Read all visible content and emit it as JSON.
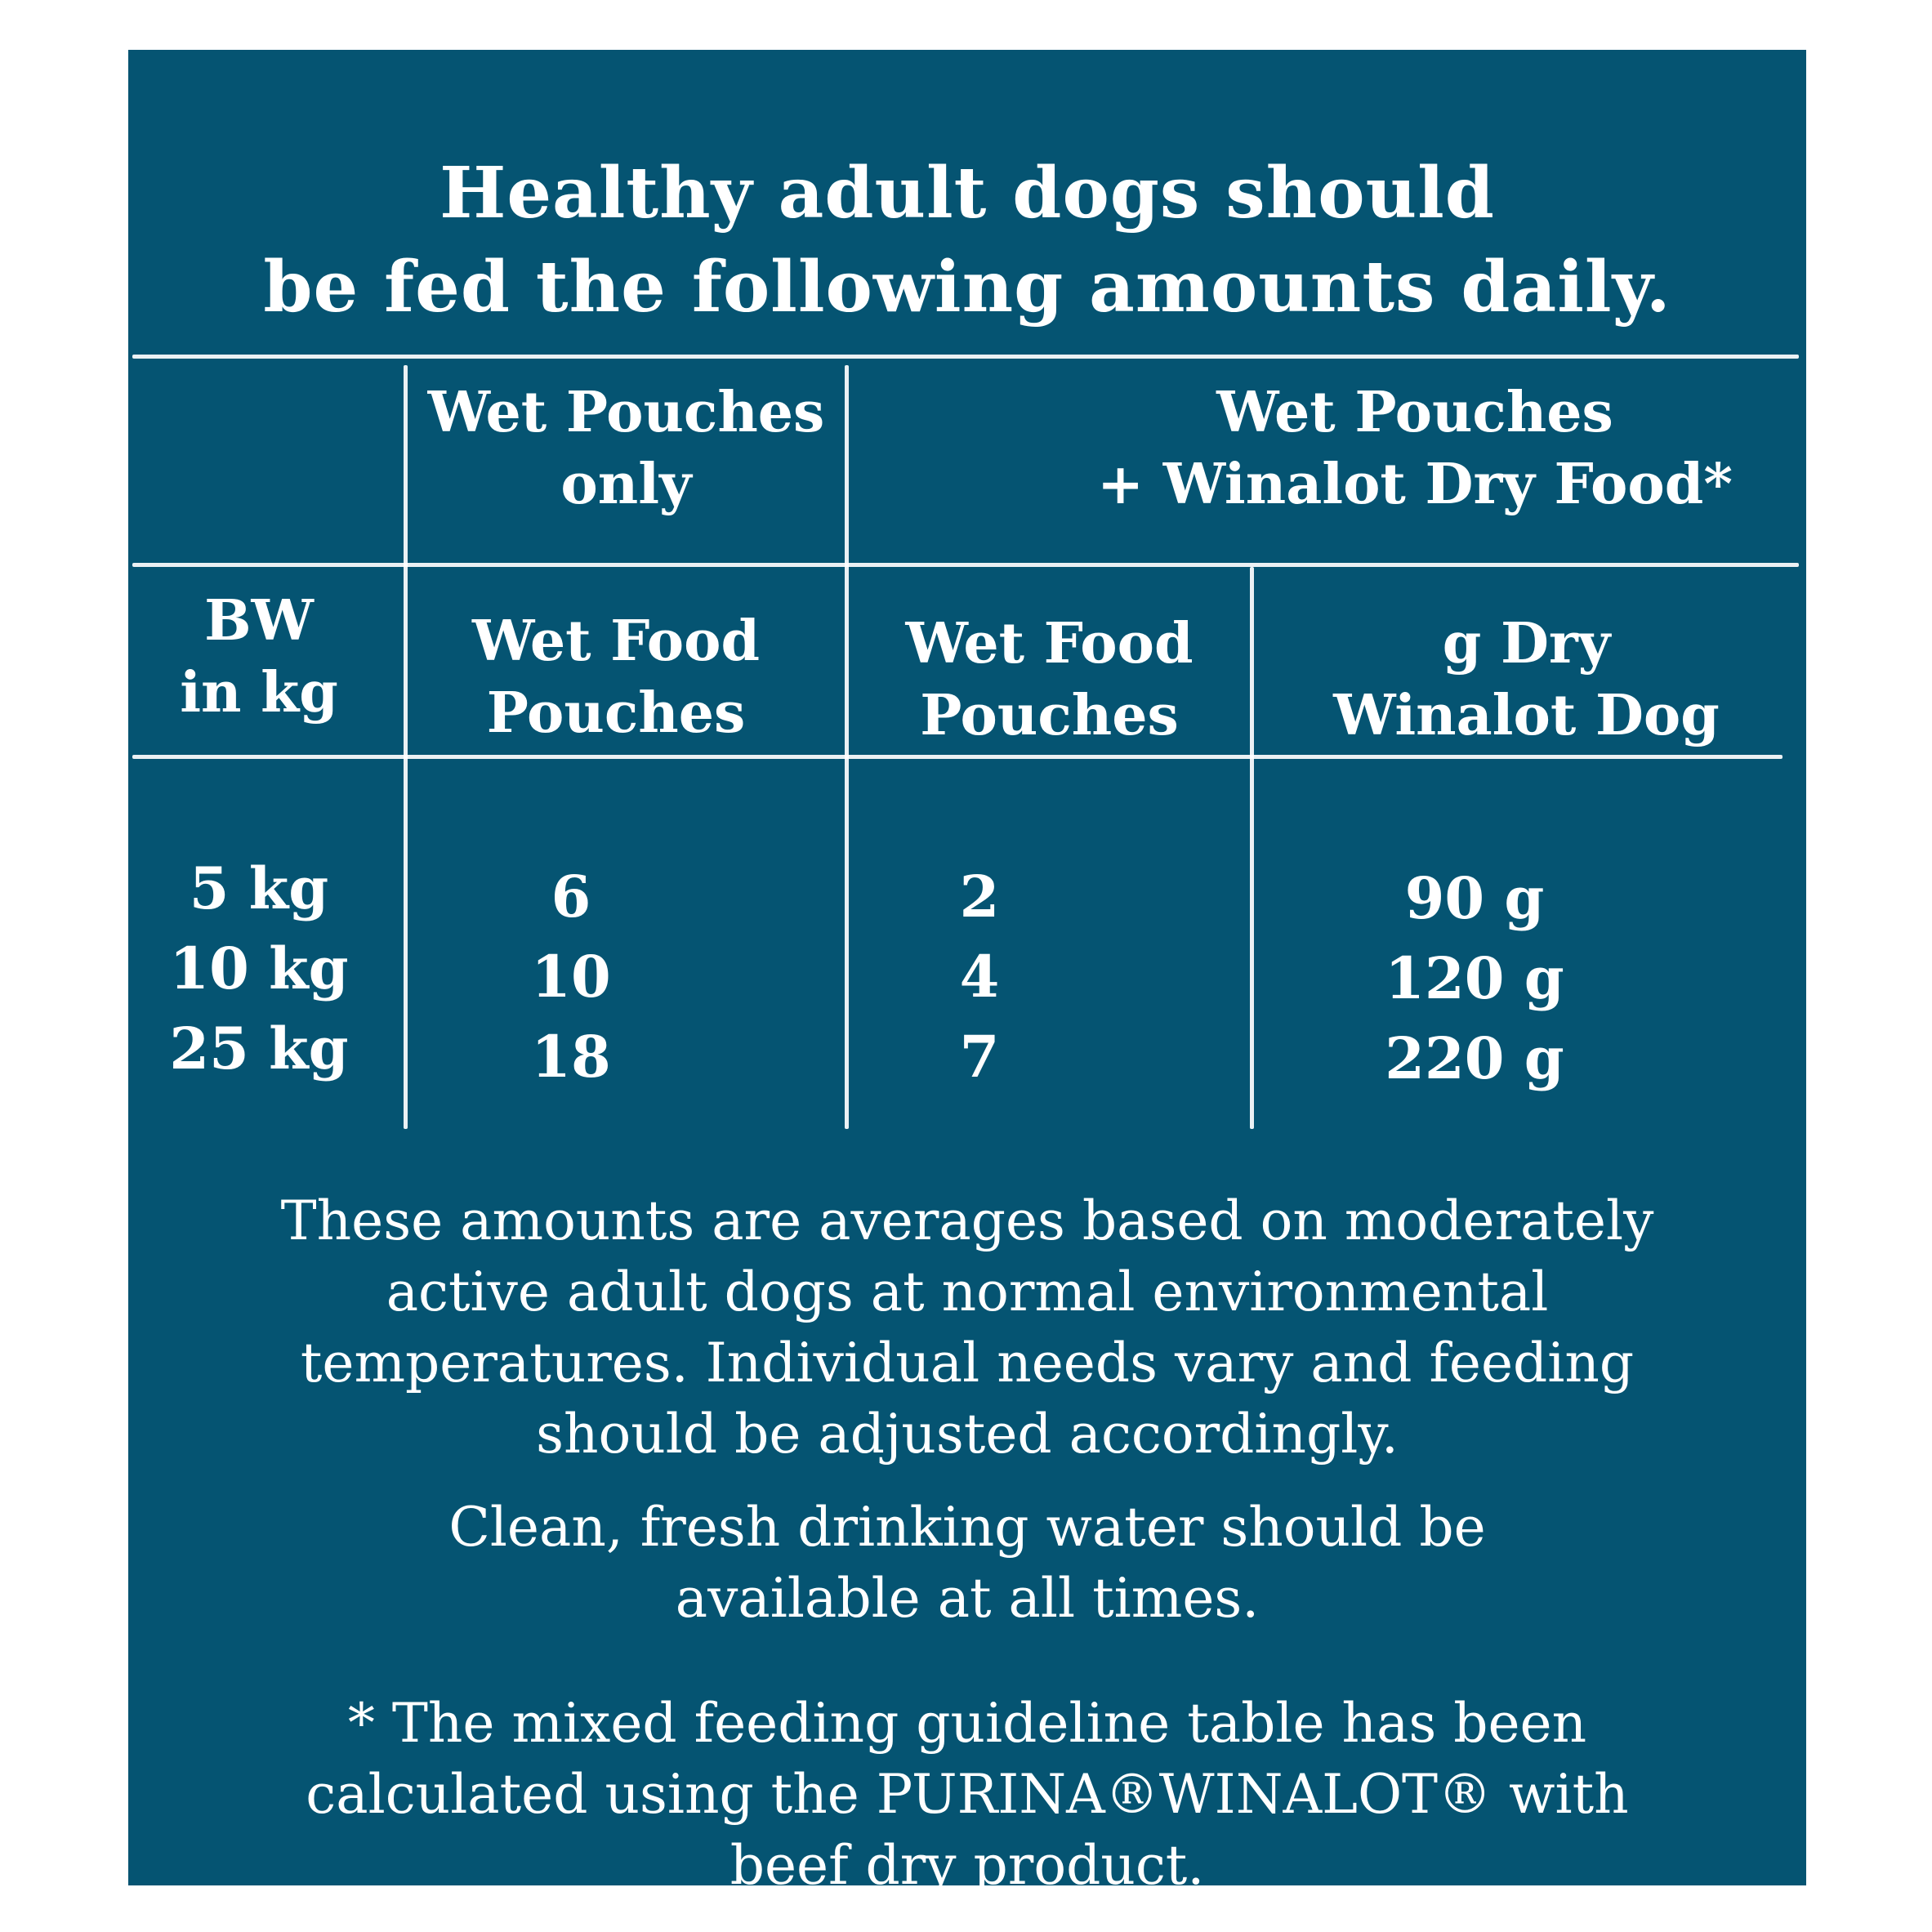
{
  "title": {
    "line1": "Healthy adult dogs should",
    "line2": "be fed the following amounts daily."
  },
  "table": {
    "group_headers": {
      "wet_only": {
        "line1": "Wet Pouches",
        "line2": "only"
      },
      "wet_plus_dry": {
        "line1": "Wet Pouches",
        "line2": "+ Winalot Dry Food*"
      }
    },
    "column_headers": {
      "bw": {
        "line1": "BW",
        "line2": "in kg"
      },
      "wet_only_pouches": {
        "line1": "Wet Food",
        "line2": "Pouches"
      },
      "mixed_pouches": {
        "line1": "Wet Food",
        "line2": "Pouches"
      },
      "mixed_dry": {
        "line1": "g Dry",
        "line2": "Winalot Dog"
      }
    },
    "rows": [
      {
        "bw": "5 kg",
        "wet_only": "6",
        "mixed_pouches": "2",
        "mixed_dry": "90 g"
      },
      {
        "bw": "10 kg",
        "wet_only": "10",
        "mixed_pouches": "4",
        "mixed_dry": "120 g"
      },
      {
        "bw": "25 kg",
        "wet_only": "18",
        "mixed_pouches": "7",
        "mixed_dry": "220 g"
      }
    ]
  },
  "notes": {
    "averages": {
      "line1": "These amounts are averages based on moderately",
      "line2": "active adult dogs at normal environmental",
      "line3": "temperatures. Individual needs vary and feeding",
      "line4": "should be adjusted accordingly."
    },
    "water": {
      "line1": "Clean, fresh drinking water should be",
      "line2": "available at all times."
    },
    "footnote": {
      "line1": "* The mixed feeding guideline table has been",
      "line2": "calculated using the PURINA®WINALOT® with",
      "line3": "beef dry product."
    }
  },
  "colors": {
    "panel_background": "#055472",
    "text": "#ffffff",
    "page_background": "#ffffff"
  }
}
